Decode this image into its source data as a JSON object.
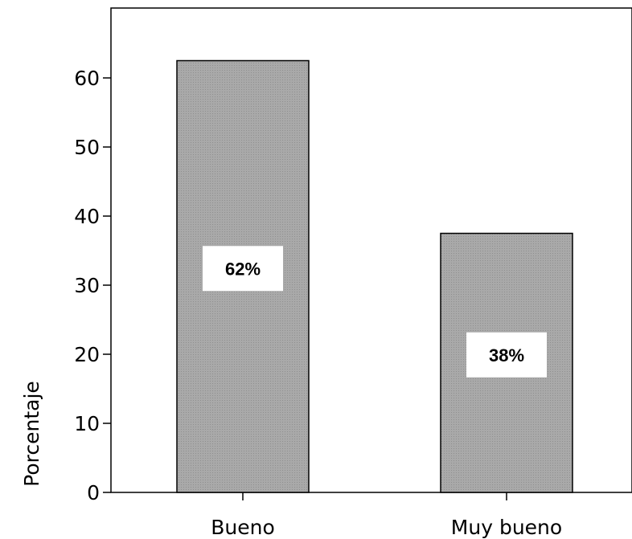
{
  "chart_data": {
    "type": "bar",
    "categories": [
      "Bueno",
      "Muy bueno"
    ],
    "values": [
      62.5,
      37.5
    ],
    "data_labels": [
      "62%",
      "38%"
    ],
    "title": "",
    "xlabel": "",
    "ylabel": "Porcentaje",
    "ylim": [
      0,
      70
    ],
    "yticks": [
      0,
      10,
      20,
      30,
      40,
      50,
      60
    ],
    "grid": false,
    "legend": "none",
    "bar_color": "#a8a8a8",
    "label_box_color": "#ffffff"
  }
}
